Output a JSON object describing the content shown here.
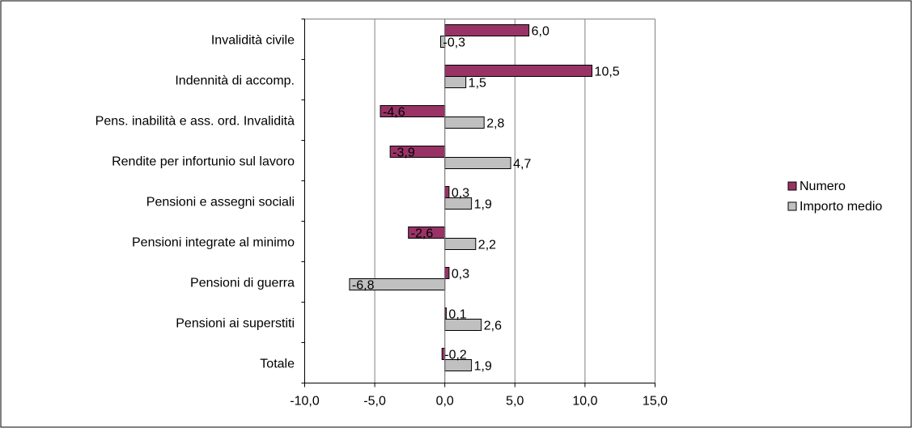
{
  "chart_data": {
    "type": "bar",
    "orientation": "horizontal",
    "categories": [
      "Invalidità civile",
      "Indennità di accomp.",
      "Pens. inabilità e ass. ord. Invalidità",
      "Rendite per infortunio sul lavoro",
      "Pensioni e assegni sociali",
      "Pensioni integrate al minimo",
      "Pensioni di guerra",
      "Pensioni ai superstiti",
      "Totale"
    ],
    "series": [
      {
        "name": "Numero",
        "color": "#993366",
        "values": [
          6.0,
          10.5,
          -4.6,
          -3.9,
          0.3,
          -2.6,
          0.3,
          0.1,
          -0.2
        ],
        "labels": [
          "6,0",
          "10,5",
          "-4,6",
          "-3,9",
          "0,3",
          "-2,6",
          "0,3",
          "0,1",
          "-0,2"
        ]
      },
      {
        "name": "Importo medio",
        "color": "#c0c0c0",
        "values": [
          -0.3,
          1.5,
          2.8,
          4.7,
          1.9,
          2.2,
          -6.8,
          2.6,
          1.9
        ],
        "labels": [
          "-0,3",
          "1,5",
          "2,8",
          "4,7",
          "1,9",
          "2,2",
          "-6,8",
          "2,6",
          "1,9"
        ]
      }
    ],
    "xlim": [
      -10,
      15
    ],
    "xticks": [
      -10,
      -5,
      0,
      5,
      10,
      15
    ],
    "xtick_labels": [
      "-10,0",
      "-5,0",
      "0,0",
      "5,0",
      "10,0",
      "15,0"
    ],
    "grid": true,
    "legend_position": "right",
    "title": "",
    "xlabel": "",
    "ylabel": ""
  }
}
